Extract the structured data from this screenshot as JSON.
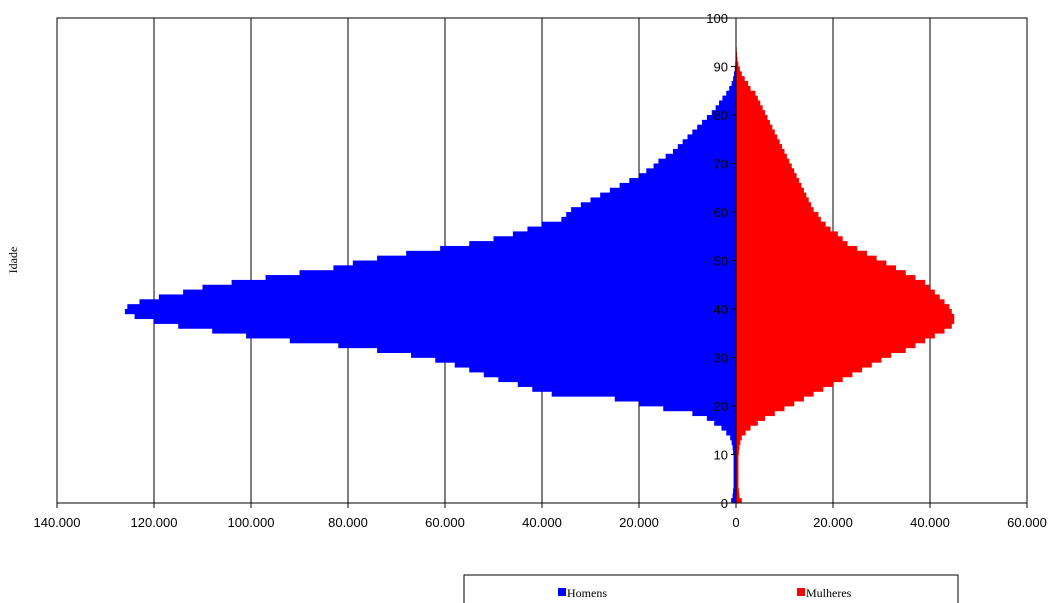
{
  "chart_data": {
    "type": "bar",
    "orientation": "horizontal-pyramid",
    "title": "",
    "ylabel": "Idade",
    "xlim": [
      -140000,
      60000
    ],
    "ylim": [
      0,
      100
    ],
    "x_ticks": [
      {
        "value": -140000,
        "label": "140.000"
      },
      {
        "value": -120000,
        "label": "120.000"
      },
      {
        "value": -100000,
        "label": "100.000"
      },
      {
        "value": -80000,
        "label": "80.000"
      },
      {
        "value": -60000,
        "label": "60.000"
      },
      {
        "value": -40000,
        "label": "40.000"
      },
      {
        "value": -20000,
        "label": "20.000"
      },
      {
        "value": 0,
        "label": "0"
      },
      {
        "value": 20000,
        "label": "20.000"
      },
      {
        "value": 40000,
        "label": "40.000"
      },
      {
        "value": 60000,
        "label": "60.000"
      }
    ],
    "y_ticks": [
      0,
      10,
      20,
      30,
      40,
      50,
      60,
      70,
      80,
      90,
      100
    ],
    "grid": "vertical",
    "legend_position": "bottom",
    "categories": [
      0,
      1,
      2,
      3,
      4,
      5,
      6,
      7,
      8,
      9,
      10,
      11,
      12,
      13,
      14,
      15,
      16,
      17,
      18,
      19,
      20,
      21,
      22,
      23,
      24,
      25,
      26,
      27,
      28,
      29,
      30,
      31,
      32,
      33,
      34,
      35,
      36,
      37,
      38,
      39,
      40,
      41,
      42,
      43,
      44,
      45,
      46,
      47,
      48,
      49,
      50,
      51,
      52,
      53,
      54,
      55,
      56,
      57,
      58,
      59,
      60,
      61,
      62,
      63,
      64,
      65,
      66,
      67,
      68,
      69,
      70,
      71,
      72,
      73,
      74,
      75,
      76,
      77,
      78,
      79,
      80,
      81,
      82,
      83,
      84,
      85,
      86,
      87,
      88,
      89,
      90,
      91,
      92,
      93,
      94,
      95,
      96,
      97,
      98,
      99,
      100
    ],
    "series": [
      {
        "name": "Homens",
        "color": "#0000ff",
        "values": [
          1000,
          700,
          600,
          500,
          500,
          500,
          500,
          500,
          500,
          500,
          600,
          700,
          900,
          1200,
          2000,
          3000,
          4500,
          6000,
          9000,
          15000,
          20000,
          25000,
          38000,
          42000,
          45000,
          49000,
          52000,
          55000,
          58000,
          62000,
          67000,
          74000,
          82000,
          92000,
          101000,
          108000,
          115000,
          120000,
          124000,
          126000,
          125500,
          123000,
          119000,
          114000,
          110000,
          104000,
          97000,
          90000,
          83000,
          79000,
          74000,
          68000,
          61000,
          55000,
          50000,
          46000,
          43000,
          40000,
          36000,
          35000,
          34000,
          32000,
          30000,
          28000,
          26000,
          24000,
          22000,
          20000,
          18500,
          17000,
          16000,
          14500,
          13000,
          12000,
          11000,
          10000,
          9000,
          8000,
          7000,
          6000,
          5000,
          4200,
          3500,
          2800,
          2000,
          1400,
          900,
          600,
          400,
          250,
          150,
          100,
          80,
          60,
          40,
          30,
          20,
          15,
          10,
          5,
          2
        ]
      },
      {
        "name": "Mulheres",
        "color": "#ff0000",
        "values": [
          1200,
          700,
          600,
          500,
          500,
          500,
          500,
          500,
          500,
          500,
          600,
          700,
          900,
          1200,
          2000,
          3000,
          4500,
          6000,
          8000,
          10000,
          12000,
          14000,
          16000,
          18000,
          20000,
          22000,
          24000,
          26000,
          28000,
          30000,
          32000,
          35000,
          37000,
          39000,
          41000,
          43000,
          44500,
          45000,
          45000,
          44500,
          44000,
          43000,
          42000,
          41000,
          40000,
          39000,
          37000,
          35000,
          33000,
          31000,
          29000,
          27000,
          25000,
          23000,
          22000,
          21000,
          19500,
          18500,
          17500,
          17000,
          16000,
          15500,
          15000,
          14500,
          14000,
          13500,
          13000,
          12500,
          12000,
          11500,
          11000,
          10500,
          10000,
          9500,
          9000,
          8500,
          8000,
          7500,
          7000,
          6500,
          6000,
          5500,
          5000,
          4500,
          4000,
          3000,
          2500,
          1800,
          1200,
          800,
          500,
          300,
          200,
          150,
          100,
          70,
          50,
          35,
          20,
          10,
          5
        ]
      }
    ]
  }
}
